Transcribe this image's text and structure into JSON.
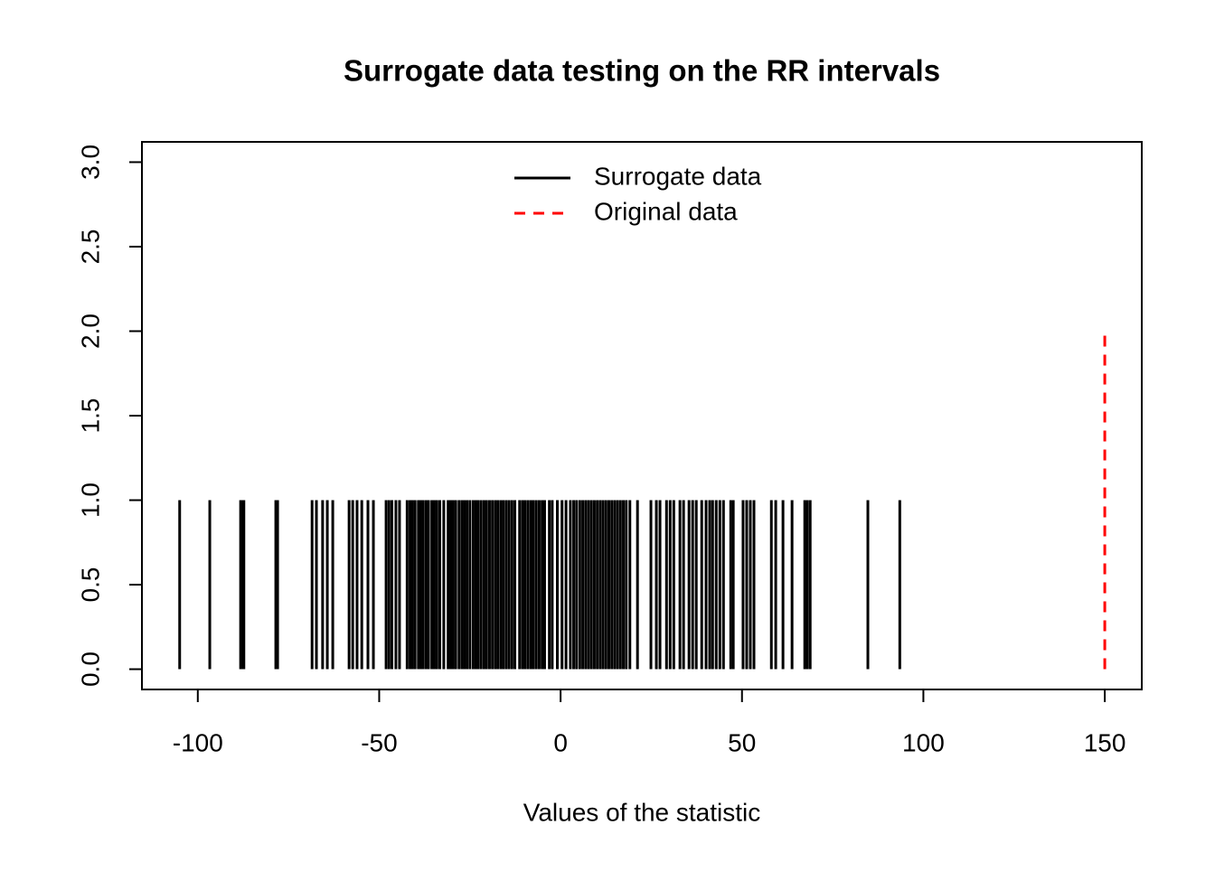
{
  "chart_data": {
    "type": "spike",
    "title": "Surrogate data testing on the RR intervals",
    "xlabel": "Values of the statistic",
    "xlim": [
      -115.4,
      160.2
    ],
    "ylim": [
      -0.12,
      3.12
    ],
    "xticks": [
      -100,
      -50,
      0,
      50,
      100,
      150
    ],
    "yticks": [
      {
        "value": 0,
        "label": "0.0"
      },
      {
        "value": 0.5,
        "label": "0.5"
      },
      {
        "value": 1,
        "label": "1.0"
      },
      {
        "value": 1.5,
        "label": "1.5"
      },
      {
        "value": 2,
        "label": "2.0"
      },
      {
        "value": 2.5,
        "label": "2.5"
      },
      {
        "value": 3,
        "label": "3.0"
      }
    ],
    "legend": "top",
    "series": [
      {
        "name": "Surrogate data",
        "color": "#000000",
        "dash": false,
        "height": 1,
        "x": [
          -105,
          -96.7,
          -88.2,
          -87.7,
          -87.3,
          -78.5,
          -78.0,
          -68.5,
          -67.3,
          -65.6,
          -64.3,
          -62.8,
          -58.3,
          -57.3,
          -56.1,
          -54.8,
          -53.1,
          -51.6,
          -48.1,
          -47.3,
          -46.5,
          -45.4,
          -44.4,
          -42.3,
          -41.5,
          -40.8,
          -40.1,
          -39.2,
          -38.6,
          -37.9,
          -37.1,
          -36.4,
          -35.5,
          -34.8,
          -34.1,
          -33.3,
          -32.2,
          -31.0,
          -30.3,
          -29.6,
          -28.9,
          -28.0,
          -27.2,
          -26.5,
          -25.8,
          -25.0,
          -24.1,
          -23.4,
          -22.7,
          -21.9,
          -21.1,
          -20.4,
          -19.6,
          -18.8,
          -18.0,
          -17.3,
          -16.5,
          -15.8,
          -15.0,
          -14.2,
          -13.4,
          -12.6,
          -11.3,
          -10.5,
          -9.8,
          -9.0,
          -8.2,
          -7.5,
          -6.7,
          -5.9,
          -5.1,
          -4.4,
          -3.1,
          -2.3,
          -0.9,
          0.4,
          1.5,
          2.7,
          3.6,
          4.4,
          5.3,
          6.1,
          6.9,
          7.7,
          8.5,
          9.3,
          10.1,
          10.9,
          11.7,
          12.5,
          13.3,
          14.1,
          14.9,
          15.7,
          16.5,
          17.3,
          18.1,
          19.1,
          21.2,
          24.9,
          26.4,
          27.4,
          29.2,
          30.2,
          31.2,
          32.9,
          33.9,
          35.4,
          36.4,
          37.4,
          38.9,
          40.1,
          41.1,
          41.9,
          42.9,
          43.9,
          44.9,
          46.9,
          47.6,
          50.3,
          51.3,
          52.3,
          53.3,
          58.1,
          59.3,
          61.3,
          63.8,
          67.3,
          68.0,
          68.8,
          84.7,
          93.5
        ]
      },
      {
        "name": "Original data",
        "color": "#ff0000",
        "dash": true,
        "height": 2,
        "x": [
          150
        ]
      }
    ]
  }
}
